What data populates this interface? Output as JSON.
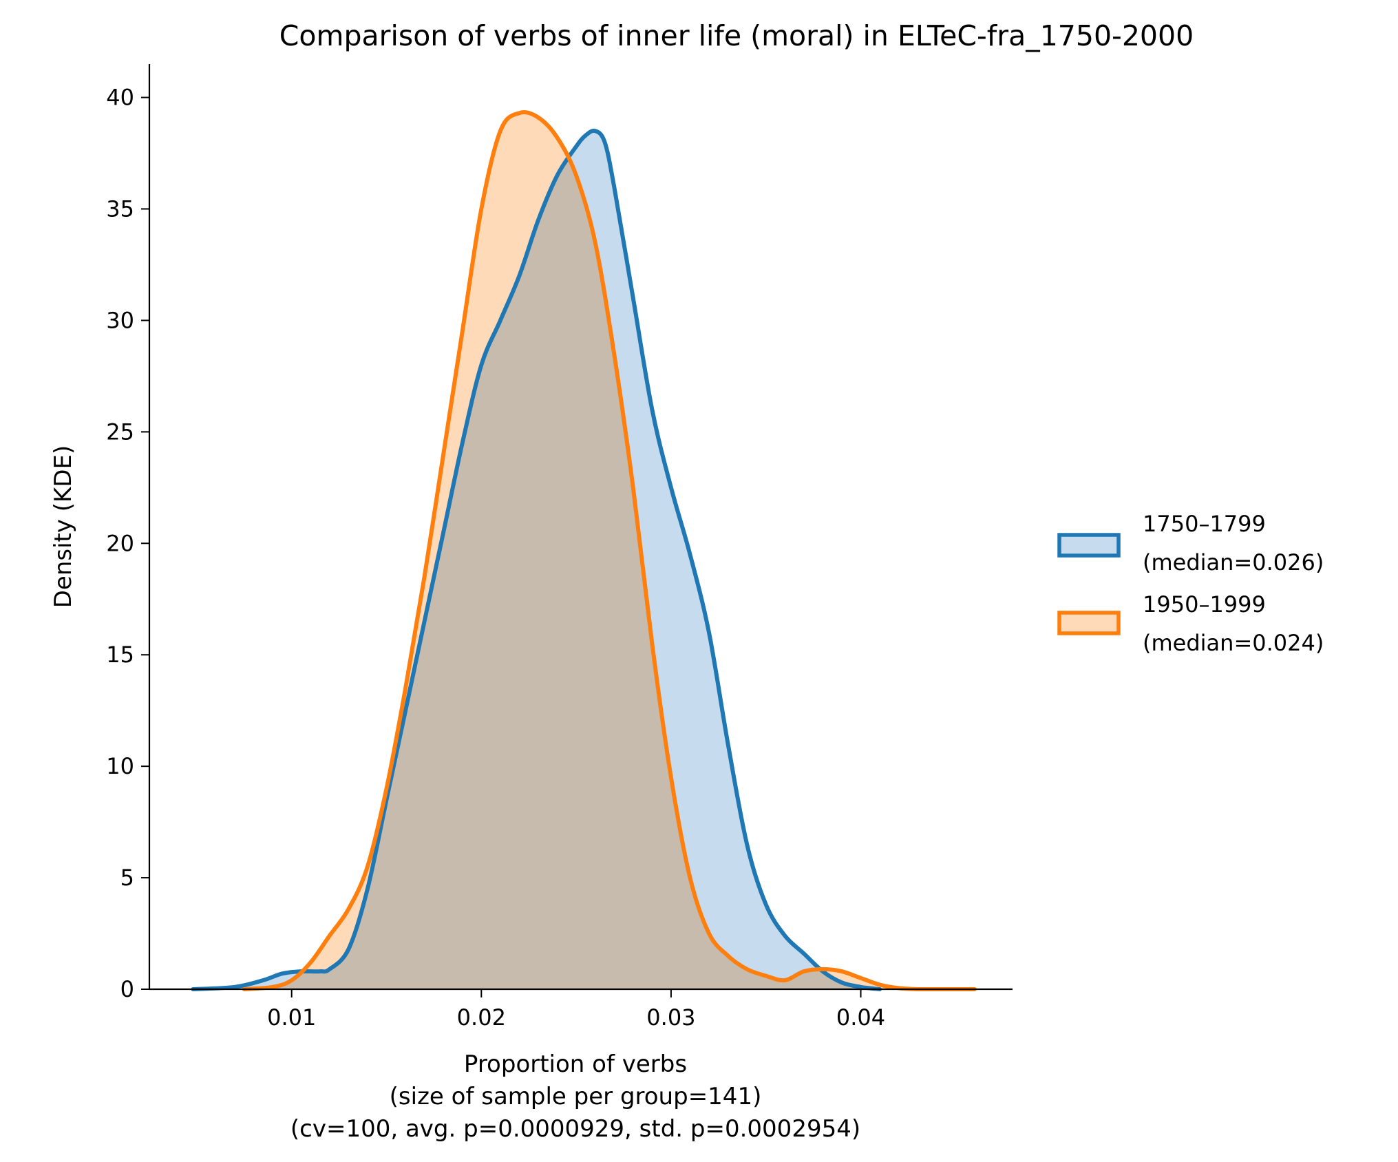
{
  "chart_data": {
    "type": "area",
    "title": "Comparison of verbs of inner life (moral) in ELTeC-fra_1750-2000",
    "xlabel_lines": [
      "Proportion of verbs",
      "(size of sample per group=141)",
      "(cv=100, avg. p=0.0000929, std. p=0.0002954)"
    ],
    "ylabel": "Density (KDE)",
    "xlim": [
      0.0025,
      0.048
    ],
    "ylim": [
      0,
      41.5
    ],
    "xticks": [
      0.01,
      0.02,
      0.03,
      0.04
    ],
    "xtick_labels": [
      "0.01",
      "0.02",
      "0.03",
      "0.04"
    ],
    "yticks": [
      0,
      5,
      10,
      15,
      20,
      25,
      30,
      35,
      40
    ],
    "ytick_labels": [
      "0",
      "5",
      "10",
      "15",
      "20",
      "25",
      "30",
      "35",
      "40"
    ],
    "grid": false,
    "legend_position": "right",
    "series": [
      {
        "name_lines": [
          "1750–1799",
          "(median=0.026)"
        ],
        "color": "#1f77b4",
        "fill": "#c6dbed",
        "x": [
          0.0048,
          0.007,
          0.0085,
          0.0095,
          0.0105,
          0.0115,
          0.012,
          0.013,
          0.014,
          0.015,
          0.016,
          0.017,
          0.018,
          0.019,
          0.02,
          0.021,
          0.022,
          0.023,
          0.024,
          0.025,
          0.0255,
          0.026,
          0.0265,
          0.027,
          0.028,
          0.029,
          0.03,
          0.031,
          0.032,
          0.033,
          0.034,
          0.035,
          0.036,
          0.037,
          0.038,
          0.039,
          0.04,
          0.041
        ],
        "y": [
          0.0,
          0.1,
          0.4,
          0.7,
          0.8,
          0.8,
          0.9,
          1.8,
          4.5,
          8.5,
          12.5,
          16.5,
          20.5,
          24.5,
          28.0,
          30.0,
          32.0,
          34.5,
          36.5,
          37.8,
          38.3,
          38.5,
          38.0,
          36.0,
          31.0,
          26.0,
          22.5,
          19.5,
          16.0,
          11.0,
          6.5,
          3.8,
          2.4,
          1.6,
          0.8,
          0.3,
          0.1,
          0.0
        ]
      },
      {
        "name_lines": [
          "1950–1999",
          "(median=0.024)"
        ],
        "color": "#ff7f0e",
        "fill": "#ffdab9",
        "x": [
          0.0075,
          0.009,
          0.01,
          0.011,
          0.012,
          0.013,
          0.014,
          0.015,
          0.016,
          0.017,
          0.018,
          0.019,
          0.02,
          0.021,
          0.022,
          0.023,
          0.024,
          0.025,
          0.026,
          0.027,
          0.028,
          0.029,
          0.03,
          0.031,
          0.032,
          0.033,
          0.034,
          0.035,
          0.036,
          0.037,
          0.038,
          0.039,
          0.04,
          0.041,
          0.042,
          0.043,
          0.044,
          0.045,
          0.046
        ],
        "y": [
          0.0,
          0.1,
          0.4,
          1.2,
          2.4,
          3.6,
          5.5,
          9.0,
          13.5,
          18.5,
          24.0,
          29.5,
          35.0,
          38.5,
          39.3,
          39.1,
          38.2,
          36.5,
          33.5,
          28.5,
          22.5,
          15.5,
          9.5,
          5.0,
          2.5,
          1.5,
          0.9,
          0.6,
          0.4,
          0.8,
          0.9,
          0.8,
          0.5,
          0.2,
          0.05,
          0.0,
          0.0,
          0.0,
          0.0
        ]
      }
    ]
  }
}
